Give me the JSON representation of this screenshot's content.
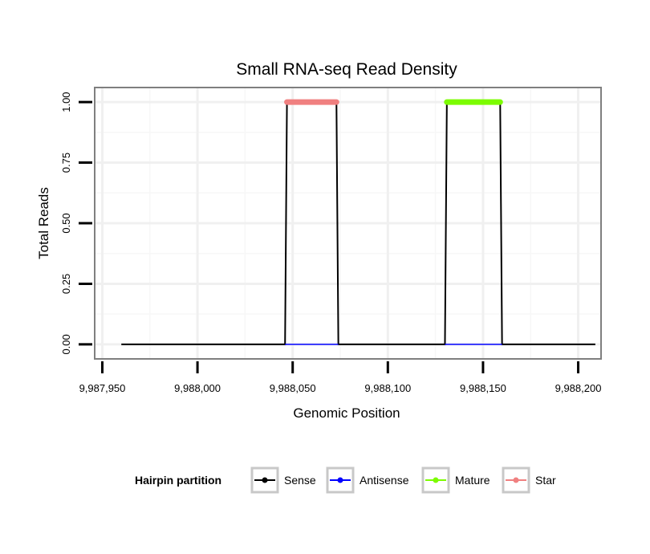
{
  "chart_data": {
    "type": "line",
    "title": "Small RNA-seq Read Density",
    "xlabel": "Genomic Position",
    "ylabel": "Total Reads",
    "xlim": [
      9987946,
      9988212
    ],
    "ylim": [
      -0.06,
      1.06
    ],
    "x_ticks": [
      9987950,
      9988000,
      9988050,
      9988100,
      9988150,
      9988200
    ],
    "x_tick_labels": [
      "9,987,950",
      "9,988,000",
      "9,988,050",
      "9,988,100",
      "9,988,150",
      "9,988,200"
    ],
    "y_ticks": [
      0,
      0.25,
      0.5,
      0.75,
      1
    ],
    "y_tick_labels": [
      "0.00",
      "0.25",
      "0.50",
      "0.75",
      "1.00"
    ],
    "grid": true,
    "legend": {
      "title": "Hairpin partition",
      "position": "bottom",
      "entries": [
        {
          "name": "Sense",
          "color": "#000000"
        },
        {
          "name": "Antisense",
          "color": "#0000ff"
        },
        {
          "name": "Mature",
          "color": "#7cfc00"
        },
        {
          "name": "Star",
          "color": "#f08080"
        }
      ]
    },
    "series": [
      {
        "name": "Sense",
        "color": "#000000",
        "x": [
          9987960,
          9988046,
          9988047,
          9988073,
          9988074,
          9988130,
          9988131,
          9988159,
          9988160,
          9988209
        ],
        "y": [
          0,
          0,
          1,
          1,
          0,
          0,
          1,
          1,
          0,
          0
        ]
      },
      {
        "name": "Antisense",
        "color": "#0000ff",
        "x": [
          9988046,
          9988074,
          9988130,
          9988160
        ],
        "y": [
          0,
          0,
          0,
          0
        ]
      },
      {
        "name": "Mature",
        "color": "#7cfc00",
        "x": [
          9988131,
          9988159
        ],
        "y": [
          1,
          1
        ]
      },
      {
        "name": "Star",
        "color": "#f08080",
        "x": [
          9988047,
          9988073
        ],
        "y": [
          1,
          1
        ]
      }
    ]
  }
}
